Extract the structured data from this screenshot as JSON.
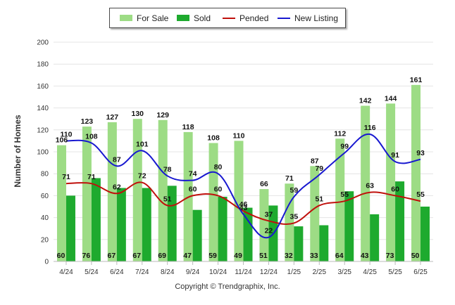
{
  "chart_data": {
    "type": "bar",
    "ylabel": "Number of Homes",
    "xlabel": "",
    "ylim": [
      0,
      200
    ],
    "yticks": [
      0,
      20,
      40,
      60,
      80,
      100,
      120,
      140,
      160,
      180,
      200
    ],
    "grid": true,
    "legend_position": "top-center",
    "categories": [
      "4/24",
      "5/24",
      "6/24",
      "7/24",
      "8/24",
      "9/24",
      "10/24",
      "11/24",
      "12/24",
      "1/25",
      "2/25",
      "3/25",
      "4/25",
      "5/25",
      "6/25"
    ],
    "series": [
      {
        "name": "For Sale",
        "kind": "bar",
        "color": "#9ddc85",
        "values": [
          106,
          123,
          127,
          130,
          129,
          118,
          108,
          110,
          66,
          71,
          87,
          112,
          142,
          144,
          161
        ]
      },
      {
        "name": "Sold",
        "kind": "bar",
        "color": "#1eaa2e",
        "values": [
          60,
          76,
          67,
          67,
          69,
          47,
          59,
          49,
          51,
          32,
          33,
          64,
          43,
          73,
          50
        ]
      },
      {
        "name": "Pended",
        "kind": "line",
        "color": "#c0100c",
        "values": [
          71,
          71,
          62,
          72,
          51,
          60,
          60,
          46,
          37,
          35,
          51,
          55,
          63,
          60,
          55
        ]
      },
      {
        "name": "New Listing",
        "kind": "line",
        "color": "#1818d0",
        "values": [
          110,
          108,
          87,
          101,
          78,
          74,
          80,
          43,
          22,
          59,
          79,
          99,
          116,
          91,
          93
        ]
      }
    ]
  },
  "footer": "Copyright © Trendgraphix, Inc."
}
